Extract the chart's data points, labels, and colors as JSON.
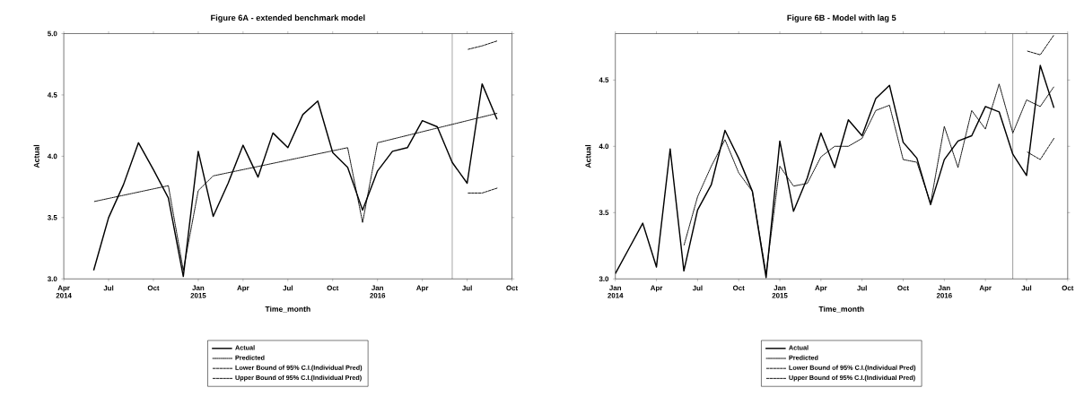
{
  "chart_data": [
    {
      "type": "line",
      "title": "Figure 6A - extended benchmark model",
      "xlabel": "Time_month",
      "ylabel": "Actual",
      "xlim": [
        "2014-04",
        "2016-10"
      ],
      "xticks": [
        {
          "value": "2014-04",
          "label": "Apr 2014"
        },
        {
          "value": "2014-07",
          "label": "Jul"
        },
        {
          "value": "2014-10",
          "label": "Oct"
        },
        {
          "value": "2015-01",
          "label": "Jan 2015"
        },
        {
          "value": "2015-04",
          "label": "Apr"
        },
        {
          "value": "2015-07",
          "label": "Jul"
        },
        {
          "value": "2015-10",
          "label": "Oct"
        },
        {
          "value": "2016-01",
          "label": "Jan 2016"
        },
        {
          "value": "2016-04",
          "label": "Apr"
        },
        {
          "value": "2016-07",
          "label": "Jul"
        },
        {
          "value": "2016-10",
          "label": "Oct"
        }
      ],
      "ylim": [
        3.0,
        5.0
      ],
      "yticks": [
        {
          "value": 3.0,
          "label": "3.0"
        },
        {
          "value": 3.5,
          "label": "3.5"
        },
        {
          "value": 4.0,
          "label": "4.0"
        },
        {
          "value": 4.5,
          "label": "4.5"
        },
        {
          "value": 5.0,
          "label": "5.0"
        }
      ],
      "legend": "bottom",
      "grid": false,
      "ref_lines": [
        {
          "axis": "x",
          "value": "2016-06",
          "color": "#000000"
        }
      ],
      "series": [
        {
          "name": "Actual",
          "color": "#000000",
          "line_style": "solid",
          "x": [
            "2014-06",
            "2014-07",
            "2014-08",
            "2014-09",
            "2014-10",
            "2014-11",
            "2014-12",
            "2015-01",
            "2015-02",
            "2015-03",
            "2015-04",
            "2015-05",
            "2015-06",
            "2015-07",
            "2015-08",
            "2015-09",
            "2015-10",
            "2015-11",
            "2015-12",
            "2016-01",
            "2016-02",
            "2016-03",
            "2016-04",
            "2016-05",
            "2016-06",
            "2016-07",
            "2016-08",
            "2016-09"
          ],
          "values": [
            3.07,
            3.5,
            3.77,
            4.11,
            3.89,
            3.66,
            3.02,
            4.04,
            3.51,
            3.78,
            4.09,
            3.83,
            4.19,
            4.07,
            4.34,
            4.45,
            4.03,
            3.91,
            3.56,
            3.88,
            4.04,
            4.07,
            4.29,
            4.24,
            3.95,
            3.78,
            4.59,
            4.3
          ]
        },
        {
          "name": "Predicted",
          "color": "#000000",
          "line_style": "dotted",
          "x": [
            "2014-06",
            "2014-11",
            "2014-12",
            "2015-01",
            "2015-02",
            "2015-11",
            "2015-12",
            "2016-01",
            "2016-09"
          ],
          "values": [
            3.63,
            3.76,
            3.07,
            3.72,
            3.84,
            4.07,
            3.46,
            4.11,
            4.35
          ]
        },
        {
          "name": "Lower Bound of 95% C.I.(Individual Pred)",
          "color": "#000000",
          "line_style": "dashed",
          "x": [
            "2016-07",
            "2016-08",
            "2016-09"
          ],
          "values": [
            3.7,
            3.7,
            3.74
          ]
        },
        {
          "name": "Upper Bound of 95% C.I.(Individual Pred)",
          "color": "#000000",
          "line_style": "dashed",
          "x": [
            "2016-07",
            "2016-08",
            "2016-09"
          ],
          "values": [
            4.87,
            4.9,
            4.94
          ]
        }
      ]
    },
    {
      "type": "line",
      "title": "Figure 6B - Model with lag 5",
      "xlabel": "Time_month",
      "ylabel": "Actual",
      "xlim": [
        "2014-01",
        "2016-10"
      ],
      "xticks": [
        {
          "value": "2014-01",
          "label": "Jan 2014"
        },
        {
          "value": "2014-04",
          "label": "Apr"
        },
        {
          "value": "2014-07",
          "label": "Jul"
        },
        {
          "value": "2014-10",
          "label": "Oct"
        },
        {
          "value": "2015-01",
          "label": "Jan 2015"
        },
        {
          "value": "2015-04",
          "label": "Apr"
        },
        {
          "value": "2015-07",
          "label": "Jul"
        },
        {
          "value": "2015-10",
          "label": "Oct"
        },
        {
          "value": "2016-01",
          "label": "Jan 2016"
        },
        {
          "value": "2016-04",
          "label": "Apr"
        },
        {
          "value": "2016-07",
          "label": "Jul"
        },
        {
          "value": "2016-10",
          "label": "Oct"
        }
      ],
      "ylim": [
        3.0,
        4.85
      ],
      "yticks": [
        {
          "value": 3.0,
          "label": "3.0"
        },
        {
          "value": 3.5,
          "label": "3.5"
        },
        {
          "value": 4.0,
          "label": "4.0"
        },
        {
          "value": 4.5,
          "label": "4.5"
        }
      ],
      "legend": "bottom",
      "grid": false,
      "ref_lines": [
        {
          "axis": "x",
          "value": "2016-06",
          "color": "#000000"
        }
      ],
      "series": [
        {
          "name": "Actual",
          "color": "#000000",
          "line_style": "solid",
          "x": [
            "2014-01",
            "2014-02",
            "2014-03",
            "2014-04",
            "2014-05",
            "2014-06",
            "2014-07",
            "2014-08",
            "2014-09",
            "2014-10",
            "2014-11",
            "2014-12",
            "2015-01",
            "2015-02",
            "2015-03",
            "2015-04",
            "2015-05",
            "2015-06",
            "2015-07",
            "2015-08",
            "2015-09",
            "2015-10",
            "2015-11",
            "2015-12",
            "2016-01",
            "2016-02",
            "2016-03",
            "2016-04",
            "2016-05",
            "2016-06",
            "2016-07",
            "2016-08",
            "2016-09"
          ],
          "values": [
            3.04,
            3.23,
            3.42,
            3.09,
            3.98,
            3.06,
            3.52,
            3.71,
            4.12,
            3.91,
            3.66,
            3.01,
            4.04,
            3.51,
            3.76,
            4.1,
            3.84,
            4.2,
            4.08,
            4.36,
            4.46,
            4.03,
            3.91,
            3.56,
            3.9,
            4.04,
            4.08,
            4.3,
            4.26,
            3.94,
            3.78,
            4.61,
            4.29
          ]
        },
        {
          "name": "Predicted",
          "color": "#000000",
          "line_style": "dotted",
          "x": [
            "2014-06",
            "2014-07",
            "2014-08",
            "2014-09",
            "2014-10",
            "2014-11",
            "2014-12",
            "2015-01",
            "2015-02",
            "2015-03",
            "2015-04",
            "2015-05",
            "2015-06",
            "2015-07",
            "2015-08",
            "2015-09",
            "2015-10",
            "2015-11",
            "2015-12",
            "2016-01",
            "2016-02",
            "2016-03",
            "2016-04",
            "2016-05",
            "2016-06",
            "2016-07",
            "2016-08",
            "2016-09"
          ],
          "values": [
            3.25,
            3.62,
            3.85,
            4.05,
            3.8,
            3.66,
            3.04,
            3.85,
            3.7,
            3.72,
            3.92,
            4.0,
            4.0,
            4.06,
            4.27,
            4.31,
            3.9,
            3.88,
            3.57,
            4.15,
            3.84,
            4.27,
            4.13,
            4.47,
            4.1,
            4.35,
            4.3,
            4.45
          ]
        },
        {
          "name": "Lower Bound of 95% C.I.(Individual Pred)",
          "color": "#000000",
          "line_style": "dashed",
          "x": [
            "2016-07",
            "2016-08",
            "2016-09"
          ],
          "values": [
            3.96,
            3.9,
            4.06
          ]
        },
        {
          "name": "Upper Bound of 95% C.I.(Individual Pred)",
          "color": "#000000",
          "line_style": "dashed",
          "x": [
            "2016-07",
            "2016-08",
            "2016-09"
          ],
          "values": [
            4.72,
            4.69,
            4.84
          ]
        }
      ]
    }
  ]
}
